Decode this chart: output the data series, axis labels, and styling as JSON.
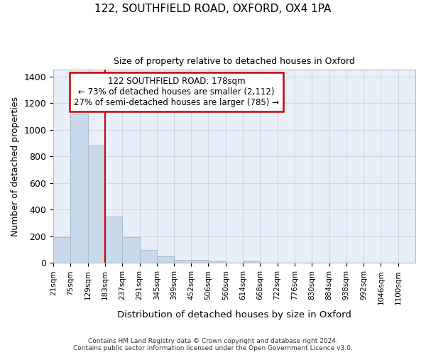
{
  "title_line1": "122, SOUTHFIELD ROAD, OXFORD, OX4 1PA",
  "title_line2": "Size of property relative to detached houses in Oxford",
  "xlabel": "Distribution of detached houses by size in Oxford",
  "ylabel": "Number of detached properties",
  "bar_left_edges": [
    21,
    75,
    129,
    183,
    237,
    291,
    345,
    399,
    452,
    506,
    560,
    614,
    668,
    722,
    776,
    830,
    884,
    938,
    992,
    1046
  ],
  "bar_widths": [
    54,
    54,
    54,
    54,
    54,
    54,
    54,
    53,
    54,
    54,
    54,
    54,
    54,
    54,
    54,
    54,
    54,
    54,
    54,
    54
  ],
  "bar_heights": [
    196,
    1120,
    880,
    350,
    192,
    100,
    52,
    25,
    22,
    15,
    0,
    15,
    0,
    0,
    0,
    0,
    0,
    0,
    0,
    0
  ],
  "bar_color": "#c9d9ea",
  "bar_edge_color": "#aabfcf",
  "tick_labels": [
    "21sqm",
    "75sqm",
    "129sqm",
    "183sqm",
    "237sqm",
    "291sqm",
    "345sqm",
    "399sqm",
    "452sqm",
    "506sqm",
    "560sqm",
    "614sqm",
    "668sqm",
    "722sqm",
    "776sqm",
    "830sqm",
    "884sqm",
    "938sqm",
    "992sqm",
    "1046sqm",
    "1100sqm"
  ],
  "ylim": [
    0,
    1450
  ],
  "xlim": [
    21,
    1154
  ],
  "property_x": 183,
  "annotation_line1": "122 SOUTHFIELD ROAD: 178sqm",
  "annotation_line2": "← 73% of detached houses are smaller (2,112)",
  "annotation_line3": "27% of semi-detached houses are larger (785) →",
  "annotation_box_color": "#ffffff",
  "annotation_box_edge_color": "#cc0000",
  "red_line_color": "#cc0000",
  "grid_color": "#d0d8e8",
  "background_color": "#e8eff8",
  "fig_background_color": "#ffffff",
  "footer_line1": "Contains HM Land Registry data © Crown copyright and database right 2024.",
  "footer_line2": "Contains public sector information licensed under the Open Government Licence v3.0.",
  "yticks": [
    0,
    200,
    400,
    600,
    800,
    1000,
    1200,
    1400
  ]
}
